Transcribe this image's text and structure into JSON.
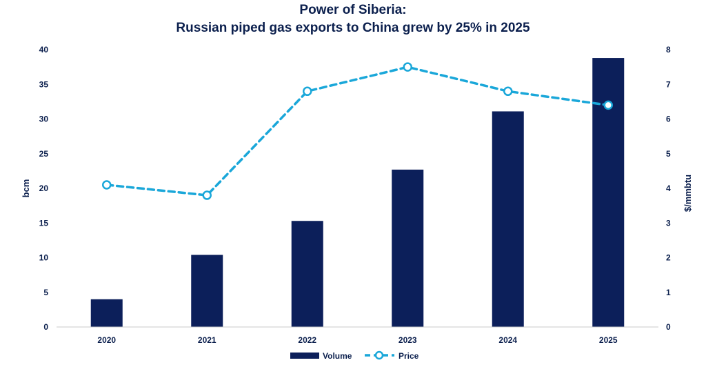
{
  "chart_data": {
    "type": "bar+line",
    "title": "Power of Siberia:",
    "subtitle": "Russian piped gas exports to China grew by 25% in 2025",
    "categories": [
      "2020",
      "2021",
      "2022",
      "2023",
      "2024",
      "2025"
    ],
    "series": [
      {
        "name": "Volume",
        "type": "bar",
        "axis": "left",
        "color": "#0c1f5a",
        "values": [
          4.0,
          10.4,
          15.3,
          22.7,
          31.1,
          38.8
        ]
      },
      {
        "name": "Price",
        "type": "line",
        "axis": "right",
        "color": "#1aa7d9",
        "line_style": "dashed",
        "marker": "hollow-circle",
        "values": [
          4.1,
          3.8,
          6.8,
          7.5,
          6.8,
          6.4
        ]
      }
    ],
    "ylabel": "bcm",
    "ylabel_right": "$/mmbtu",
    "ylim": [
      0,
      40
    ],
    "yticks": [
      "0",
      "5",
      "10",
      "15",
      "20",
      "25",
      "30",
      "35",
      "40"
    ],
    "ylim_right": [
      0,
      8
    ],
    "yticks_right": [
      "0",
      "1",
      "2",
      "3",
      "4",
      "5",
      "6",
      "7",
      "8"
    ],
    "grid": false,
    "legend_position": "bottom"
  }
}
